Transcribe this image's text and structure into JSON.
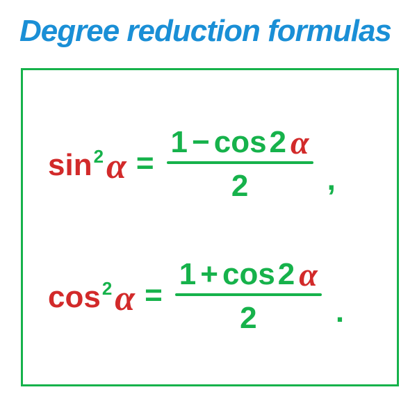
{
  "colors": {
    "title": "#1a8fd6",
    "border": "#16b24b",
    "green": "#16b24b",
    "red": "#d22a2a"
  },
  "title": "Degree reduction formulas",
  "formulas": {
    "sin": {
      "func": "sin",
      "exp": "2",
      "alpha": "α",
      "eq": "=",
      "num_1": "1",
      "num_op": "−",
      "num_cos": "cos",
      "num_2": "2",
      "num_alpha": "α",
      "den": "2",
      "punct": ","
    },
    "cos": {
      "func": "cos",
      "exp": "2",
      "alpha": "α",
      "eq": "=",
      "num_1": "1",
      "num_op": "+",
      "num_cos": "cos",
      "num_2": "2",
      "num_alpha": "α",
      "den": "2",
      "punct": "."
    }
  }
}
